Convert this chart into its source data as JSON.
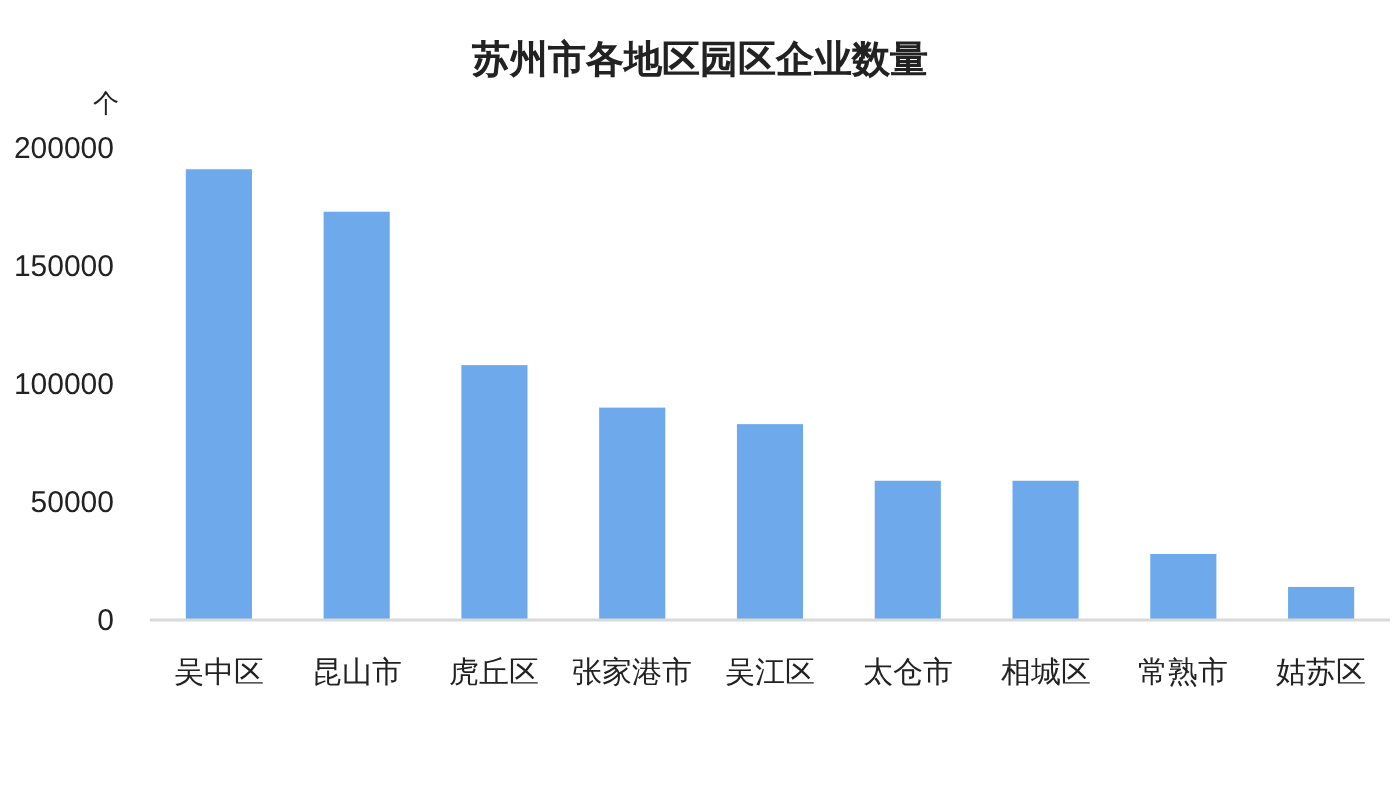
{
  "chart_data": {
    "type": "bar",
    "title": "苏州市各地区园区企业数量",
    "ylabel": "个",
    "categories": [
      "吴中区",
      "昆山市",
      "虎丘区",
      "张家港市",
      "吴江区",
      "太仓市",
      "相城区",
      "常熟市",
      "姑苏区"
    ],
    "values": [
      191000,
      173000,
      108000,
      90000,
      83000,
      59000,
      59000,
      28000,
      14000
    ],
    "color": "#6eaaeb",
    "ylim": [
      0,
      200000
    ],
    "yticks": [
      0,
      50000,
      100000,
      150000,
      200000
    ]
  }
}
